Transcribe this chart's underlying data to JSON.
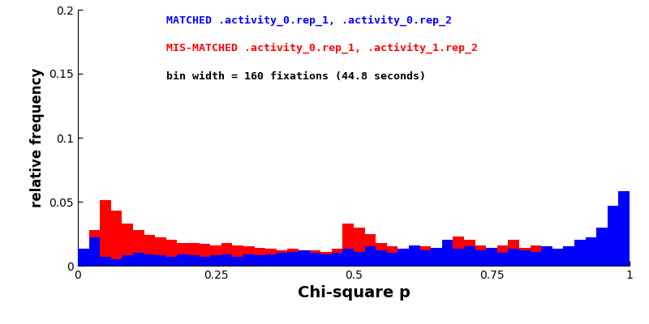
{
  "title_blue": "MATCHED .activity_0.rep_1, .activity_0.rep_2",
  "title_red": "MIS-MATCHED .activity_0.rep_1, .activity_1.rep_2",
  "title_bin": "bin width = 160 fixations (44.8 seconds)",
  "xlabel": "Chi-square p",
  "ylabel": "relative frequency",
  "ylim": [
    0,
    0.2
  ],
  "xlim": [
    0.0,
    1.0
  ],
  "nbins": 50,
  "color_blue": "#0000ff",
  "color_red": "#ff0000",
  "blue_heights": [
    0.013,
    0.022,
    0.007,
    0.005,
    0.008,
    0.01,
    0.009,
    0.008,
    0.007,
    0.009,
    0.008,
    0.007,
    0.008,
    0.009,
    0.007,
    0.009,
    0.008,
    0.009,
    0.01,
    0.011,
    0.012,
    0.01,
    0.009,
    0.01,
    0.013,
    0.011,
    0.015,
    0.012,
    0.01,
    0.013,
    0.016,
    0.012,
    0.014,
    0.02,
    0.013,
    0.015,
    0.012,
    0.014,
    0.01,
    0.013,
    0.012,
    0.011,
    0.015,
    0.013,
    0.015,
    0.02,
    0.022,
    0.03,
    0.047,
    0.058
  ],
  "red_heights": [
    0.003,
    0.028,
    0.051,
    0.043,
    0.033,
    0.028,
    0.024,
    0.022,
    0.02,
    0.018,
    0.018,
    0.017,
    0.016,
    0.018,
    0.016,
    0.015,
    0.014,
    0.013,
    0.012,
    0.013,
    0.011,
    0.012,
    0.011,
    0.013,
    0.033,
    0.03,
    0.025,
    0.018,
    0.015,
    0.013,
    0.012,
    0.015,
    0.014,
    0.017,
    0.023,
    0.02,
    0.016,
    0.013,
    0.016,
    0.02,
    0.014,
    0.016,
    0.013,
    0.01,
    0.009,
    0.008,
    0.01,
    0.007,
    0.004,
    0.0
  ],
  "annotation_fontsize": 9.5,
  "ylabel_fontsize": 12,
  "xlabel_fontsize": 14,
  "tick_fontsize": 10
}
